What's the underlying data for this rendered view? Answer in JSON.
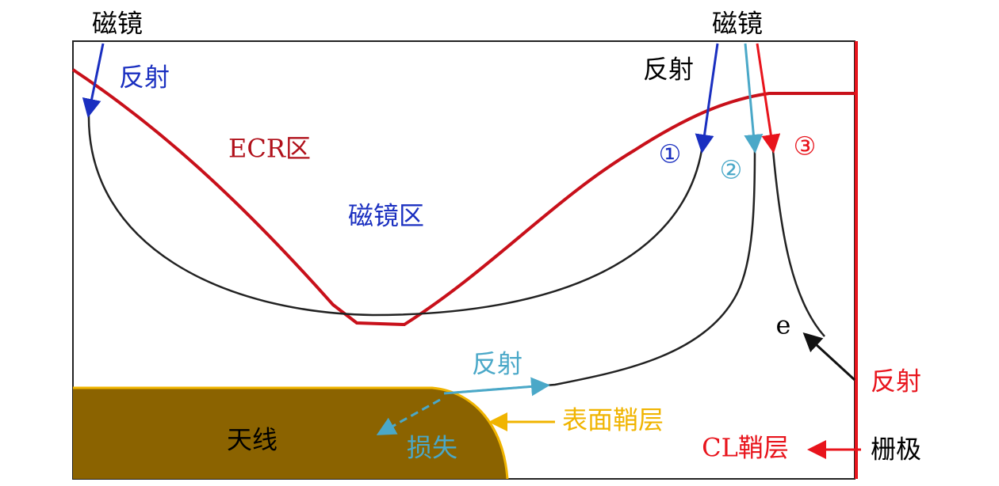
{
  "labels": {
    "mirror_left": "磁镜",
    "reflect_left": "反射",
    "ecr_zone": "ECR区",
    "mirror_zone": "磁镜区",
    "mirror_right": "磁镜",
    "reflect_top": "反射",
    "path_1": "①",
    "path_2": "②",
    "path_3": "③",
    "electron": "e",
    "reflect_grid": "反射",
    "reflect_antenna": "反射",
    "surface_sheath": "表面鞘层",
    "antenna": "天线",
    "loss": "损失",
    "cl_sheath": "CL鞘层",
    "grid": "栅极"
  }
}
